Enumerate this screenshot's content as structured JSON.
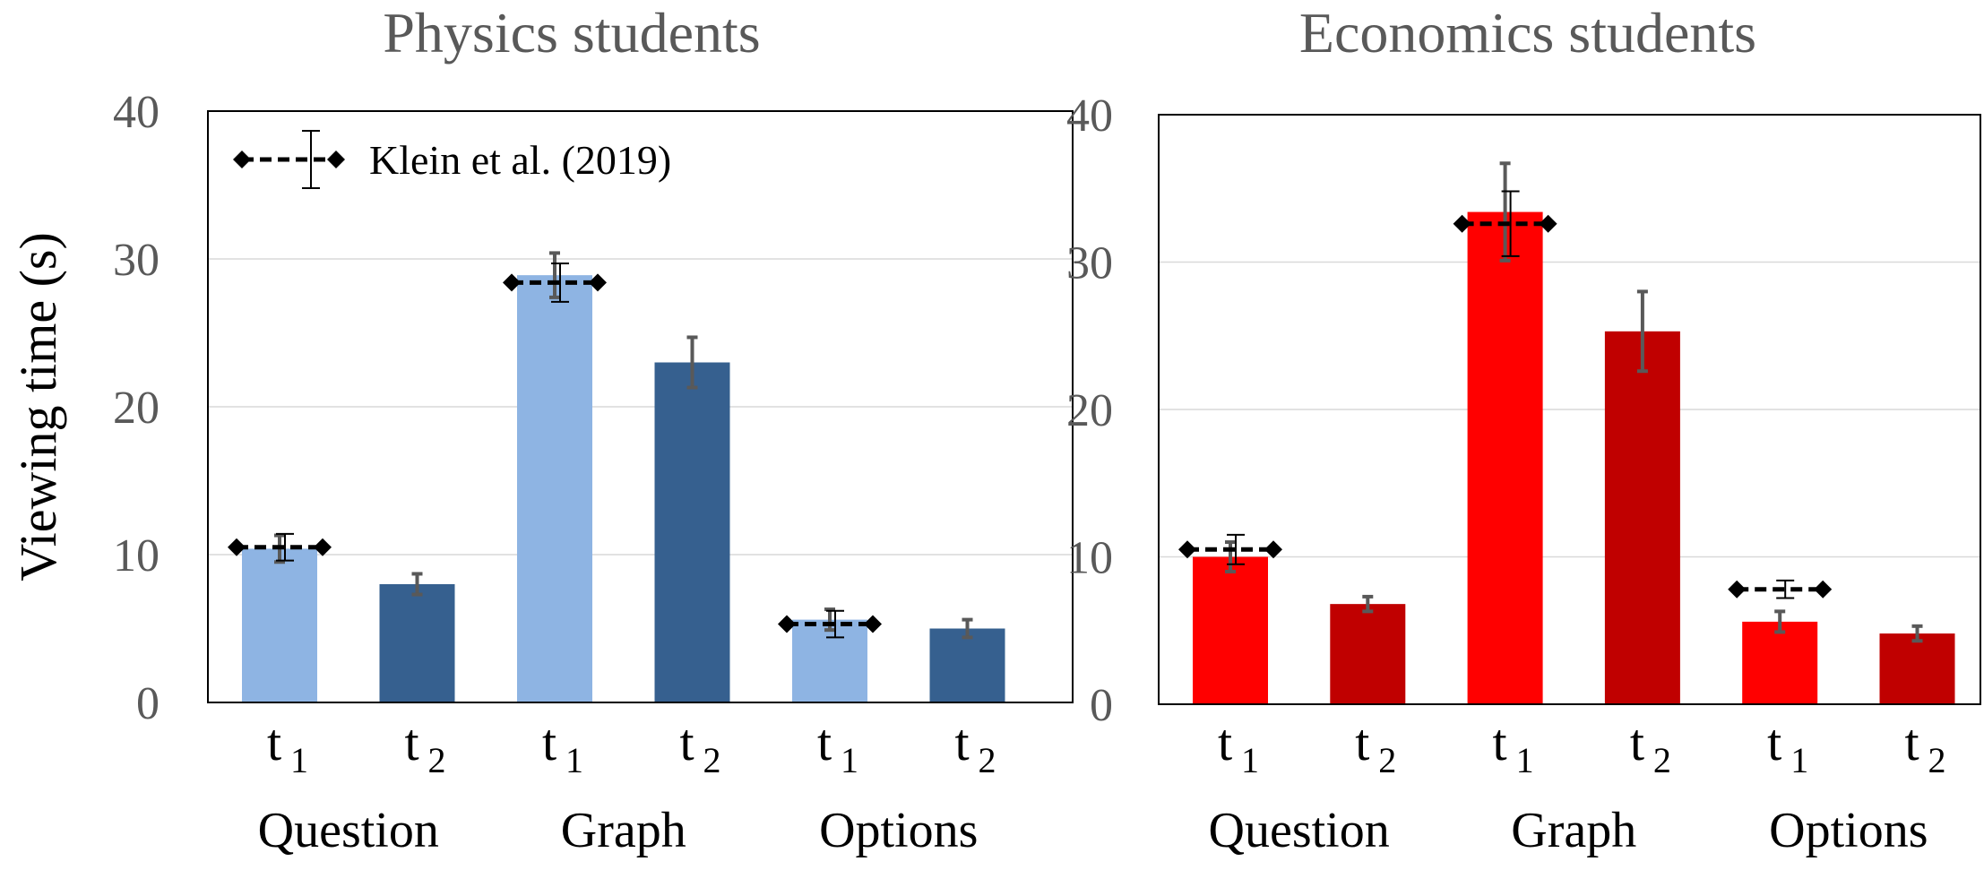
{
  "chart_data": [
    {
      "type": "bar",
      "title": "Physics students",
      "ylabel": "Viewing time (s)",
      "ylim": [
        0,
        40
      ],
      "yticks": [
        0,
        10,
        20,
        30,
        40
      ],
      "grid": true,
      "groups": [
        "Question",
        "Graph",
        "Options"
      ],
      "bar_labels": [
        {
          "base": "t",
          "sub": "1"
        },
        {
          "base": "t",
          "sub": "2"
        },
        {
          "base": "t",
          "sub": "1"
        },
        {
          "base": "t",
          "sub": "2"
        },
        {
          "base": "t",
          "sub": "1"
        },
        {
          "base": "t",
          "sub": "2"
        }
      ],
      "values": [
        10.4,
        8.0,
        28.9,
        23.0,
        5.6,
        5.0
      ],
      "errors": [
        0.9,
        0.7,
        1.5,
        1.7,
        0.7,
        0.6
      ],
      "colors": [
        "#8EB4E3",
        "#36608F",
        "#8EB4E3",
        "#36608F",
        "#8EB4E3",
        "#36608F"
      ],
      "reference": {
        "label": "Klein et al. (2019)",
        "points": [
          {
            "bar_index": 0,
            "value": 10.5,
            "error": 0.9
          },
          {
            "bar_index": 2,
            "value": 28.4,
            "error": 1.3
          },
          {
            "bar_index": 4,
            "value": 5.3,
            "error": 0.9
          }
        ]
      },
      "legend_position": "top-left"
    },
    {
      "type": "bar",
      "title": "Economics students",
      "ylim": [
        0,
        40
      ],
      "yticks": [
        0,
        10,
        20,
        30,
        40
      ],
      "grid": true,
      "groups": [
        "Question",
        "Graph",
        "Options"
      ],
      "bar_labels": [
        {
          "base": "t",
          "sub": "1"
        },
        {
          "base": "t",
          "sub": "2"
        },
        {
          "base": "t",
          "sub": "1"
        },
        {
          "base": "t",
          "sub": "2"
        },
        {
          "base": "t",
          "sub": "1"
        },
        {
          "base": "t",
          "sub": "2"
        }
      ],
      "values": [
        10.0,
        6.8,
        33.4,
        25.3,
        5.6,
        4.8
      ],
      "errors": [
        1.0,
        0.5,
        3.3,
        2.7,
        0.7,
        0.5
      ],
      "colors": [
        "#FF0000",
        "#C00000",
        "#FF0000",
        "#C00000",
        "#FF0000",
        "#C00000"
      ],
      "reference": {
        "label": "Klein et al. (2019)",
        "points": [
          {
            "bar_index": 0,
            "value": 10.5,
            "error": 1.0
          },
          {
            "bar_index": 2,
            "value": 32.6,
            "error": 2.2
          },
          {
            "bar_index": 4,
            "value": 7.8,
            "error": 0.6
          }
        ]
      }
    }
  ]
}
